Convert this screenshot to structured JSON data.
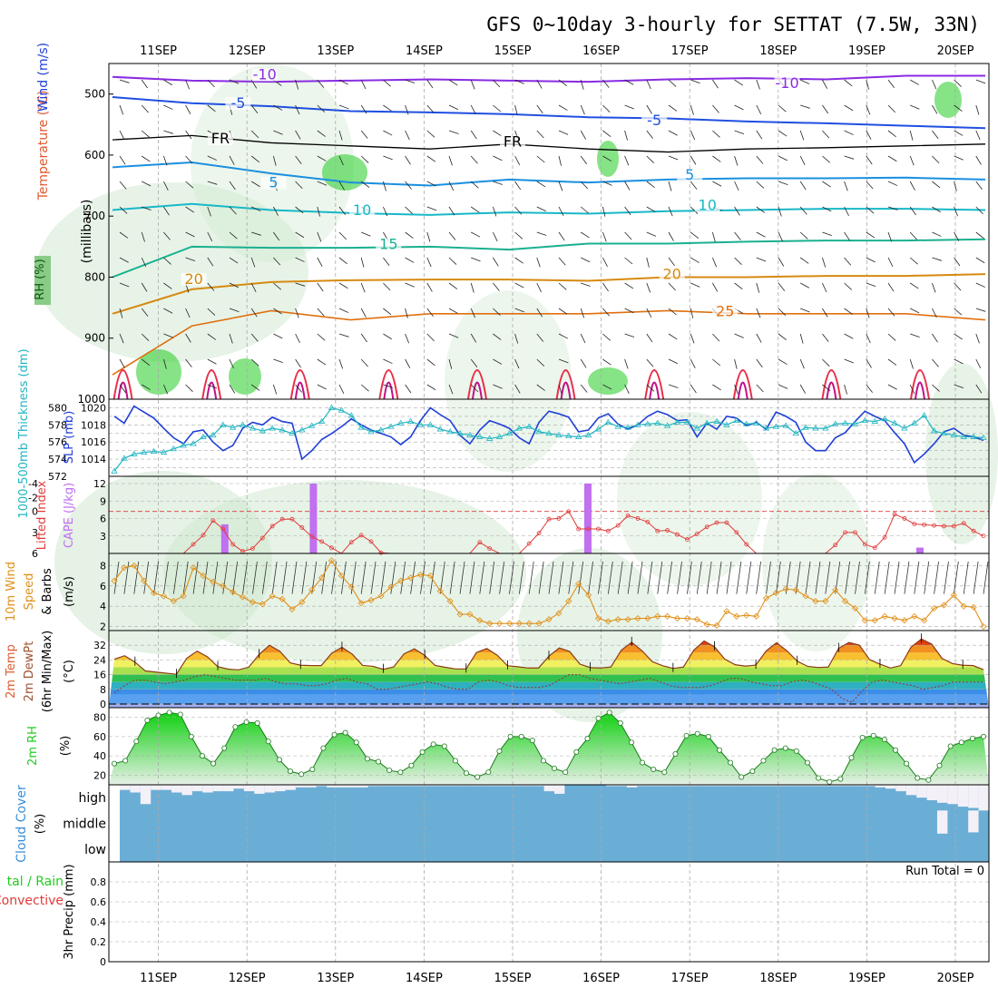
{
  "title": "GFS 0~10day 3-hourly for SETTAT (7.5W, 33N)",
  "date_labels": [
    "11SEP",
    "12SEP",
    "13SEP",
    "14SEP",
    "15SEP",
    "16SEP",
    "17SEP",
    "18SEP",
    "19SEP",
    "20SEP"
  ],
  "colors": {
    "grid": "#aaaaaa",
    "slp": "#1f3fd6",
    "thickness": "#22b4c0",
    "lifted_index": "#e03a3a",
    "cape": "#c070f0",
    "wind_speed": "#e0901a",
    "rh_green": "#22cc22",
    "cloud_blue": "#6aaed6",
    "temp_label": "#e05a30",
    "wind_label": "#1f6fd6"
  },
  "chart_data": [
    {
      "type": "contour",
      "name": "upper-air",
      "ylabel_parts": [
        "RH (%)",
        "Temperature (°C)",
        "Wind (m/s)"
      ],
      "ylabel_units": "(millibars)",
      "ylim": [
        1000,
        450
      ],
      "y_ticks": [
        500,
        600,
        700,
        800,
        900,
        1000
      ],
      "isotherm_labels": [
        {
          "text": "-10",
          "day": 2.2,
          "p": 473
        },
        {
          "text": "-10",
          "day": 8.1,
          "p": 487
        },
        {
          "text": "-5",
          "day": 1.9,
          "p": 520
        },
        {
          "text": "-5",
          "day": 6.6,
          "p": 548
        },
        {
          "text": "FR",
          "day": 1.7,
          "p": 578
        },
        {
          "text": "FR",
          "day": 5.0,
          "p": 583
        },
        {
          "text": "5",
          "day": 2.3,
          "p": 650
        },
        {
          "text": "5",
          "day": 7.0,
          "p": 637
        },
        {
          "text": "10",
          "day": 3.3,
          "p": 695
        },
        {
          "text": "10",
          "day": 7.2,
          "p": 687
        },
        {
          "text": "15",
          "day": 3.6,
          "p": 751
        },
        {
          "text": "20",
          "day": 1.4,
          "p": 808
        },
        {
          "text": "20",
          "day": 6.8,
          "p": 800
        },
        {
          "text": "25",
          "day": 7.4,
          "p": 861
        }
      ]
    },
    {
      "type": "line",
      "name": "slp-thickness",
      "ylabel_left": "1000-500mb Thickness (dm)",
      "ylabel_right": "SLP (mb)",
      "left_ticks": [
        572,
        574,
        576,
        578,
        580
      ],
      "right_ticks": [
        1014,
        1016,
        1018,
        1020
      ],
      "ylim_right": [
        1012,
        1021
      ],
      "ylim_left": [
        572,
        581
      ],
      "series": [
        {
          "name": "SLP",
          "values": [
            1019.0,
            1018.2,
            1020.2,
            1019.5,
            1018.8,
            1017.6,
            1016.5,
            1015.8,
            1017.2,
            1017.4,
            1016.0,
            1015.0,
            1015.6,
            1017.6,
            1018.3,
            1018.0,
            1018.9,
            1018.4,
            1018.2,
            1014.0,
            1015.0,
            1016.3,
            1017.0,
            1017.8,
            1018.7,
            1018.0,
            1017.4,
            1017.0,
            1016.6,
            1015.7,
            1016.6,
            1018.5,
            1020.0,
            1019.2,
            1018.5,
            1016.8,
            1015.8,
            1017.4,
            1018.5,
            1018.1,
            1017.6,
            1016.5,
            1015.8,
            1018.3,
            1019.6,
            1019.3,
            1018.9,
            1017.2,
            1017.4,
            1018.8,
            1019.3,
            1018.1,
            1017.5,
            1018.0,
            1019.0,
            1019.6,
            1019.2,
            1018.5,
            1018.6,
            1016.6,
            1018.2,
            1017.5,
            1019.0,
            1018.8,
            1017.9,
            1018.3,
            1017.5,
            1019.5,
            1019.0,
            1018.3,
            1016.0,
            1015.0,
            1015.0,
            1016.5,
            1017.1,
            1018.4,
            1019.6,
            1019.0,
            1018.5,
            1017.1,
            1015.8,
            1013.6,
            1014.6,
            1015.8,
            1017.2,
            1017.6,
            1016.8,
            1016.6,
            1016.2
          ]
        },
        {
          "name": "Thickness",
          "values": [
            572.6,
            574.1,
            574.6,
            574.8,
            574.9,
            574.8,
            575.2,
            575.6,
            575.8,
            576.6,
            576.8,
            578.0,
            577.7,
            578.0,
            577.6,
            577.3,
            577.6,
            577.4,
            577.0,
            577.4,
            577.9,
            578.4,
            580.0,
            579.7,
            579.1,
            577.7,
            577.2,
            577.4,
            577.8,
            578.2,
            578.4,
            578.0,
            578.0,
            577.5,
            577.2,
            577.0,
            576.8,
            576.6,
            576.4,
            576.6,
            577.0,
            577.6,
            577.8,
            577.2,
            577.0,
            576.8,
            576.7,
            576.6,
            576.8,
            577.5,
            578.3,
            577.8,
            577.7,
            578.0,
            578.1,
            578.2,
            577.9,
            578.3,
            578.3,
            577.6,
            578.2,
            578.4,
            578.0,
            578.5,
            578.1,
            578.2,
            577.6,
            577.8,
            577.9,
            577.0,
            577.7,
            577.6,
            577.6,
            578.1,
            578.2,
            578.1,
            578.5,
            578.4,
            578.7,
            578.2,
            577.6,
            578.2,
            579.1,
            577.3,
            577.0,
            576.8,
            576.6,
            576.6,
            576.5
          ]
        }
      ]
    },
    {
      "type": "bar-line",
      "name": "cape-li",
      "ylabel_left": "Lifted Index",
      "ylabel_right": "CAPE (J/kg)",
      "li_ticks": [
        -4,
        -2,
        0,
        3,
        6
      ],
      "cape_ticks": [
        3,
        6,
        9,
        12
      ],
      "cape_ylim": [
        0,
        12
      ],
      "li_ylim": [
        6,
        -4.5
      ],
      "cape_bars": [
        {
          "day": 0.75,
          "value": 5.0
        },
        {
          "day": 1.75,
          "value": 12.0
        },
        {
          "day": 4.85,
          "value": 12.0
        },
        {
          "day": 8.6,
          "value": 1.0
        }
      ],
      "lifted_index": [
        6,
        6,
        6,
        6,
        6,
        6,
        6,
        6,
        4.7,
        3.4,
        1.3,
        2.5,
        4.7,
        5.7,
        5.3,
        3.8,
        2.1,
        1.1,
        1.1,
        2.3,
        3.6,
        4.3,
        5.2,
        6.0,
        4.4,
        3.4,
        4.3,
        5.9,
        6,
        6,
        6,
        6,
        6,
        6,
        6,
        6,
        6,
        4.4,
        5.3,
        6,
        6,
        6,
        4.6,
        3.1,
        1.1,
        1.0,
        0.0,
        2.5,
        2.5,
        2.5,
        2.8,
        2.0,
        0.6,
        1.0,
        1.5,
        2.8,
        2.7,
        3.3,
        4.0,
        3.2,
        2.2,
        1.6,
        1.6,
        3.0,
        4.7,
        6,
        6,
        6,
        6,
        6,
        6,
        6,
        6,
        4.8,
        3.0,
        3.0,
        4.7,
        5.2,
        3.7,
        0.4,
        1.0,
        1.8,
        1.9,
        2.0,
        2.1,
        2.1,
        1.7,
        2.8,
        3.5
      ]
    },
    {
      "type": "line",
      "name": "wind10m",
      "ylabel": "10m Wind Speed & Barbs",
      "ylabel_units": "(m/s)",
      "y_ticks": [
        2,
        4,
        6,
        8
      ],
      "ylim": [
        1.6,
        9.2
      ],
      "values": [
        6.5,
        7.8,
        8.0,
        6.5,
        5.3,
        5.0,
        4.5,
        5.0,
        7.8,
        7.0,
        6.4,
        6.0,
        5.4,
        4.9,
        4.4,
        4.2,
        5.0,
        4.7,
        3.7,
        4.4,
        5.6,
        6.8,
        8.5,
        7.0,
        5.9,
        4.3,
        4.6,
        5.0,
        5.9,
        6.5,
        6.8,
        7.1,
        7.0,
        5.5,
        4.5,
        3.2,
        3.2,
        2.6,
        2.3,
        2.3,
        2.3,
        2.3,
        2.3,
        2.3,
        2.7,
        3.3,
        4.5,
        6.2,
        5.1,
        2.8,
        2.5,
        2.7,
        2.7,
        2.8,
        2.8,
        3.0,
        3.0,
        2.8,
        2.8,
        2.7,
        2.2,
        2.1,
        3.5,
        3.0,
        3.1,
        3.0,
        4.8,
        5.3,
        5.7,
        5.6,
        5.0,
        4.5,
        4.5,
        5.6,
        4.5,
        3.8,
        2.6,
        2.6,
        3.0,
        2.8,
        2.6,
        3.0,
        2.6,
        3.8,
        4.1,
        5.1,
        4.0,
        3.9,
        2.0
      ]
    },
    {
      "type": "area",
      "name": "temp-dewpt",
      "ylabel": "2m Temp 2m DewPt (6hr Min/Max)",
      "ylabel_units": "(°C)",
      "y_ticks": [
        0,
        8,
        16,
        24,
        32
      ],
      "ylim": [
        -2,
        40
      ],
      "temperature": [
        24.4,
        26.3,
        22.8,
        18.0,
        17.4,
        16.8,
        16.2,
        24.9,
        28.8,
        25.7,
        20.3,
        19.0,
        18.6,
        20.1,
        27.0,
        32.0,
        28.7,
        22.4,
        21.1,
        20.9,
        20.9,
        27.6,
        30.9,
        27.1,
        21.0,
        20.5,
        18.9,
        20.2,
        27.3,
        30.0,
        26.5,
        21.0,
        20.0,
        19.1,
        19.1,
        28.0,
        30.2,
        26.6,
        20.8,
        20.3,
        19.6,
        19.6,
        26.0,
        30.5,
        28.6,
        21.7,
        19.8,
        19.6,
        20.2,
        29.3,
        33.6,
        29.0,
        23.0,
        20.8,
        19.4,
        20.1,
        29.3,
        34.3,
        31.2,
        24.4,
        21.4,
        20.6,
        21.2,
        28.9,
        33.4,
        29.0,
        23.3,
        20.5,
        19.9,
        20.1,
        30.3,
        33.5,
        32.1,
        24.1,
        21.7,
        19.6,
        20.9,
        31.0,
        35.4,
        32.6,
        24.8,
        22.0,
        21.1,
        20.9,
        18.7
      ],
      "dewpoint": [
        6,
        10,
        13,
        13,
        12,
        11,
        12,
        13,
        15,
        16,
        15,
        14,
        13,
        13,
        13,
        14,
        12,
        11,
        11,
        10,
        10,
        11,
        13,
        14,
        12,
        11,
        8,
        8,
        9,
        10,
        11,
        12,
        11,
        9,
        8,
        8,
        12,
        13,
        12,
        10,
        9,
        9,
        9,
        10,
        13,
        16,
        16,
        14,
        13,
        12,
        11,
        12,
        13,
        14,
        12,
        10,
        9,
        9,
        9,
        10,
        12,
        14,
        14,
        12,
        11,
        10,
        10,
        12,
        13,
        12,
        10,
        8,
        3,
        1,
        7,
        12,
        13,
        12,
        11,
        10,
        8,
        9,
        10,
        12,
        12,
        12,
        12
      ],
      "min_max_whiskers": [
        {
          "day": 0.4,
          "top": 27.6,
          "bottom": 21.8
        }
      ]
    },
    {
      "type": "area",
      "name": "rh2m",
      "ylabel": "2m RH",
      "ylabel_units": "(%)",
      "y_ticks": [
        20,
        40,
        60,
        80
      ],
      "ylim": [
        10,
        90
      ],
      "values": [
        32,
        35,
        55,
        77,
        82,
        85,
        83,
        60,
        40,
        32,
        48,
        70,
        75,
        74,
        55,
        36,
        24,
        21,
        26,
        48,
        62,
        64,
        54,
        37,
        34,
        25,
        23,
        30,
        44,
        52,
        50,
        35,
        22,
        18,
        23,
        45,
        60,
        60,
        56,
        35,
        27,
        23,
        44,
        58,
        79,
        85,
        74,
        54,
        33,
        26,
        23,
        42,
        61,
        63,
        60,
        46,
        33,
        18,
        24,
        35,
        46,
        48,
        45,
        33,
        17,
        13,
        16,
        38,
        59,
        61,
        57,
        46,
        32,
        17,
        15,
        30,
        50,
        54,
        58,
        60
      ]
    },
    {
      "type": "heatmap",
      "name": "cloud-cover",
      "ylabel": "Cloud Cover",
      "ylabel_units": "(%)",
      "rows": [
        "high",
        "middle",
        "low"
      ],
      "high": [
        20,
        30,
        75,
        20,
        20,
        30,
        40,
        25,
        30,
        25,
        25,
        15,
        25,
        35,
        30,
        25,
        20,
        10,
        10,
        5,
        10,
        10,
        10,
        10,
        5,
        5,
        5,
        5,
        5,
        5,
        5,
        5,
        5,
        5,
        5,
        5,
        5,
        5,
        5,
        5,
        5,
        25,
        35,
        0,
        0,
        0,
        0,
        5,
        5,
        10,
        5,
        5,
        5,
        5,
        5,
        5,
        5,
        5,
        5,
        5,
        5,
        5,
        5,
        5,
        5,
        5,
        5,
        5,
        5,
        5,
        5,
        5,
        5,
        10,
        15,
        25,
        40,
        50,
        60,
        70,
        75,
        85,
        90,
        100
      ],
      "middle": [
        0,
        0,
        0,
        0,
        0,
        0,
        0,
        0,
        0,
        0,
        0,
        0,
        0,
        0,
        0,
        0,
        0,
        0,
        0,
        0,
        0,
        0,
        0,
        0,
        0,
        0,
        0,
        0,
        0,
        0,
        0,
        0,
        0,
        0,
        0,
        0,
        0,
        0,
        0,
        0,
        0,
        0,
        0,
        0,
        0,
        0,
        0,
        0,
        0,
        0,
        0,
        0,
        0,
        0,
        0,
        0,
        0,
        0,
        0,
        0,
        0,
        0,
        0,
        0,
        0,
        0,
        0,
        0,
        0,
        0,
        0,
        0,
        0,
        0,
        0,
        0,
        0,
        0,
        0,
        90,
        0,
        0,
        85,
        0
      ]
    },
    {
      "type": "bar",
      "name": "precip",
      "ylabel": "3hr Precip (mm)",
      "ylabel_legend": "Total / Rain Convective",
      "y_ticks": [
        0,
        0.2,
        0.4,
        0.6,
        0.8
      ],
      "ylim": [
        0,
        1.0
      ],
      "run_total": "Run Total = 0",
      "values": []
    }
  ]
}
